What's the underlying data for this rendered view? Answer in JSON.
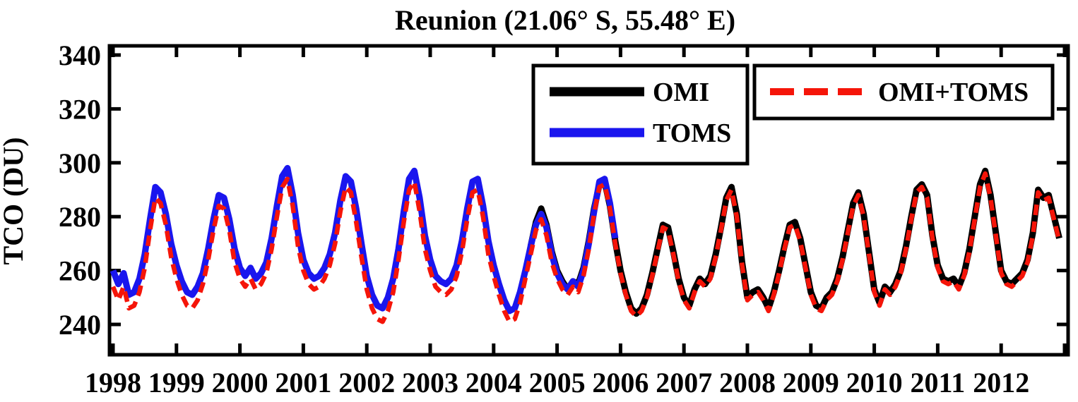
{
  "title": "Reunion (21.06° S, 55.48° E)",
  "colors": {
    "omi": "#000000",
    "toms": "#1a16ee",
    "omi_toms": "#f51509",
    "axis": "#000000",
    "background": "#ffffff"
  },
  "chart_data": {
    "type": "line",
    "title": "Reunion (21.06° S, 55.48° E)",
    "xlabel": "",
    "ylabel": "TCO (DU)",
    "xlim": [
      1998.0,
      2013.1
    ],
    "ylim": [
      228,
      343
    ],
    "grid": false,
    "yticks": [
      340,
      320,
      300,
      280,
      260,
      240
    ],
    "xticks": [
      1998,
      1999,
      2000,
      2001,
      2002,
      2003,
      2004,
      2005,
      2006,
      2007,
      2008,
      2009,
      2010,
      2011,
      2012
    ],
    "x_unit": "decimal_year_monthly",
    "x_step": 0.0833333,
    "legend_position": "top-right-inside",
    "series": [
      {
        "name": "OMI",
        "color": "#000000",
        "style": "solid",
        "width": 9,
        "start": 2004.5833,
        "values": [
          269,
          278,
          283,
          277,
          267,
          260,
          256,
          253,
          256,
          255,
          261,
          271,
          283,
          292,
          293,
          284,
          271,
          260,
          252,
          246,
          244,
          246,
          251,
          259,
          268,
          277,
          276,
          267,
          257,
          250,
          247,
          253,
          257,
          255,
          258,
          266,
          276,
          287,
          291,
          281,
          263,
          250,
          252,
          253,
          250,
          246,
          252,
          260,
          269,
          277,
          278,
          272,
          262,
          252,
          247,
          246,
          250,
          252,
          257,
          265,
          275,
          285,
          289,
          281,
          267,
          253,
          248,
          254,
          252,
          255,
          260,
          269,
          280,
          290,
          292,
          288,
          273,
          262,
          257,
          256,
          257,
          254,
          259,
          268,
          280,
          292,
          297,
          288,
          274,
          260,
          256,
          255,
          257,
          259,
          264,
          274,
          290,
          287,
          288,
          280,
          272
        ]
      },
      {
        "name": "TOMS",
        "color": "#1a16ee",
        "style": "solid",
        "width": 9,
        "start": 1998.0,
        "values": [
          260,
          255,
          259,
          251,
          252,
          257,
          266,
          279,
          291,
          289,
          281,
          270,
          262,
          256,
          252,
          251,
          254,
          259,
          268,
          279,
          288,
          287,
          279,
          268,
          261,
          258,
          261,
          257,
          259,
          263,
          272,
          284,
          295,
          298,
          288,
          274,
          264,
          259,
          257,
          258,
          261,
          266,
          274,
          286,
          295,
          293,
          283,
          270,
          258,
          251,
          247,
          246,
          250,
          257,
          268,
          282,
          294,
          297,
          287,
          273,
          264,
          258,
          256,
          255,
          257,
          262,
          271,
          283,
          293,
          294,
          284,
          271,
          262,
          255,
          249,
          245,
          246,
          252,
          260,
          269,
          277,
          281,
          276,
          266,
          259,
          255,
          253,
          256,
          254,
          260,
          270,
          282,
          293,
          294,
          285,
          272
        ]
      },
      {
        "name": "OMI+TOMS",
        "color": "#f51509",
        "style": "dashed",
        "width": 6.5,
        "start": 1998.0,
        "values": [
          254,
          249,
          254,
          246,
          247,
          252,
          261,
          275,
          287,
          285,
          277,
          265,
          257,
          251,
          247,
          246,
          249,
          255,
          264,
          275,
          284,
          283,
          275,
          263,
          257,
          254,
          257,
          253,
          255,
          259,
          268,
          280,
          291,
          294,
          284,
          269,
          260,
          255,
          253,
          254,
          257,
          262,
          270,
          282,
          291,
          289,
          278,
          265,
          253,
          246,
          242,
          241,
          245,
          252,
          264,
          278,
          290,
          293,
          282,
          268,
          260,
          254,
          252,
          251,
          253,
          258,
          267,
          279,
          289,
          290,
          280,
          266,
          258,
          251,
          245,
          241,
          242,
          248,
          257,
          266,
          275,
          279,
          273,
          263,
          257,
          253,
          251,
          254,
          252,
          258,
          268,
          281,
          291,
          292,
          283,
          270,
          259,
          251,
          245,
          243,
          245,
          250,
          258,
          267,
          276,
          275,
          266,
          256,
          249,
          246,
          252,
          256,
          254,
          257,
          265,
          275,
          286,
          290,
          280,
          262,
          249,
          251,
          252,
          249,
          245,
          251,
          259,
          268,
          276,
          277,
          271,
          261,
          251,
          246,
          245,
          249,
          251,
          256,
          264,
          274,
          284,
          288,
          280,
          266,
          252,
          247,
          253,
          251,
          254,
          259,
          268,
          279,
          289,
          291,
          287,
          272,
          261,
          256,
          255,
          256,
          253,
          258,
          267,
          279,
          291,
          296,
          287,
          273,
          259,
          255,
          254,
          256,
          258,
          263,
          273,
          289,
          286,
          287,
          279,
          271
        ]
      }
    ],
    "legend_boxes": [
      {
        "entries": [
          {
            "label": "OMI",
            "color": "#000000",
            "style": "solid"
          },
          {
            "label": "TOMS",
            "color": "#1a16ee",
            "style": "solid"
          }
        ]
      },
      {
        "entries": [
          {
            "label": "OMI+TOMS",
            "color": "#f51509",
            "style": "dashed"
          }
        ]
      }
    ]
  }
}
